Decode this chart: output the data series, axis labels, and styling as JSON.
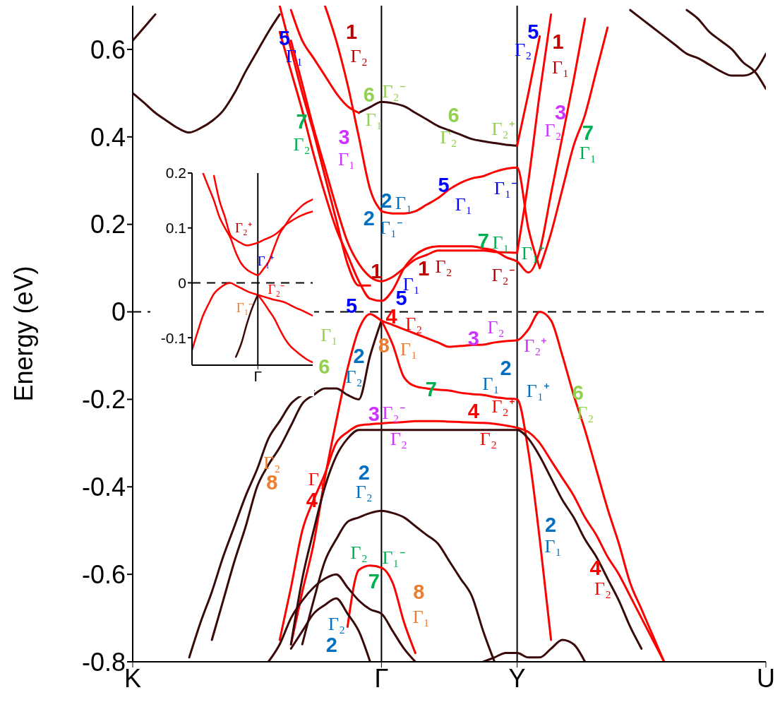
{
  "chart_data": [
    {
      "type": "line",
      "ylabel": "Energy (eV)",
      "ylim": [
        -0.8,
        0.7
      ],
      "categories": [
        "K",
        null,
        null,
        null,
        null,
        null,
        null,
        null,
        null,
        null,
        null,
        null,
        null,
        null,
        null,
        null,
        null,
        null,
        null,
        null,
        null,
        null,
        "Γ",
        null,
        null,
        null,
        null,
        null,
        null,
        null,
        null,
        null,
        null,
        null,
        "Y",
        null,
        null,
        null,
        null,
        null,
        null,
        null,
        null,
        null,
        null,
        null,
        null,
        null,
        null,
        null,
        null,
        null,
        null,
        null,
        null,
        null,
        "U"
      ],
      "yticks": [
        -0.8,
        -0.6,
        -0.4,
        -0.2,
        0,
        0.2,
        0.4,
        0.6
      ],
      "ref_lines": [
        {
          "axis": "x",
          "value": "Γ",
          "color": "#000000",
          "line_style": "solid"
        },
        {
          "axis": "x",
          "value": "Y",
          "color": "#000000",
          "line_style": "solid"
        },
        {
          "axis": "y",
          "value": 0,
          "color": "#000000",
          "line_style": "dashed"
        }
      ],
      "series": [
        {
          "color": "#3a0a0a",
          "values": [
            0.62,
            0.65,
            0.68,
            null,
            null,
            null,
            null,
            null,
            null,
            null,
            null,
            null,
            null,
            null,
            null,
            null,
            null,
            null,
            null,
            null,
            null,
            null,
            null,
            null,
            null,
            null,
            null,
            null,
            null,
            null,
            null,
            null,
            null,
            null,
            null,
            null,
            null,
            null,
            null,
            null,
            null,
            null,
            null,
            null,
            null,
            null,
            null,
            null,
            null,
            null,
            null,
            null,
            null,
            null,
            null,
            null,
            null
          ]
        },
        {
          "color": "#3a0a0a",
          "values": [
            0.5,
            0.478,
            0.455,
            0.437,
            0.42,
            0.41,
            0.42,
            0.436,
            0.46,
            0.5,
            0.55,
            0.595,
            0.64,
            0.68,
            null,
            null,
            null,
            null,
            null,
            null,
            null,
            null,
            null,
            null,
            null,
            null,
            null,
            null,
            null,
            null,
            null,
            null,
            null,
            null,
            null,
            null,
            null,
            null,
            null,
            null,
            null,
            null,
            null,
            null,
            null,
            null,
            null,
            null,
            null,
            null,
            null,
            null,
            null,
            null,
            null,
            null,
            null
          ]
        },
        {
          "color": "#3a0a0a",
          "values": [
            null,
            null,
            null,
            null,
            null,
            null,
            null,
            null,
            null,
            null,
            null,
            null,
            null,
            null,
            null,
            null,
            null,
            null,
            null,
            null,
            null,
            null,
            null,
            null,
            null,
            null,
            null,
            null,
            null,
            null,
            null,
            null,
            null,
            null,
            null,
            null,
            null,
            null,
            null,
            null,
            null,
            null,
            null,
            null,
            0.69,
            0.67,
            0.65,
            0.63,
            0.61,
            0.59,
            0.58,
            0.565,
            0.55,
            0.54,
            0.54,
            0.55,
            0.59
          ]
        },
        {
          "color": "#3a0a0a",
          "values": [
            null,
            null,
            null,
            null,
            null,
            null,
            null,
            null,
            null,
            null,
            null,
            null,
            null,
            null,
            null,
            null,
            null,
            null,
            null,
            null,
            null,
            null,
            null,
            null,
            null,
            null,
            null,
            null,
            null,
            null,
            null,
            null,
            null,
            null,
            null,
            null,
            null,
            null,
            null,
            null,
            null,
            null,
            null,
            null,
            null,
            null,
            null,
            null,
            null,
            0.69,
            0.67,
            0.64,
            0.62,
            0.6,
            0.57,
            0.55,
            0.51
          ]
        },
        {
          "color": "#3a0a0a",
          "values": [
            null,
            null,
            null,
            null,
            null,
            null,
            null,
            null,
            null,
            null,
            null,
            null,
            null,
            null,
            null,
            null,
            null,
            null,
            null,
            null,
            0.455,
            0.468,
            0.48,
            0.477,
            0.47,
            0.455,
            0.44,
            0.425,
            0.415,
            0.405,
            0.395,
            0.39,
            0.386,
            0.382,
            0.38,
            null,
            null,
            null,
            null,
            null,
            null,
            null,
            null,
            null,
            null,
            null,
            null,
            null,
            null,
            null,
            null,
            null,
            null,
            null,
            null,
            null,
            null
          ]
        },
        {
          "color": "#ff0000",
          "values": [
            null,
            null,
            null,
            null,
            null,
            null,
            null,
            null,
            null,
            null,
            null,
            null,
            null,
            null,
            0.69,
            0.62,
            0.58,
            0.54,
            0.5,
            0.47,
            0.455,
            null,
            null,
            null,
            null,
            null,
            null,
            null,
            null,
            null,
            null,
            null,
            null,
            null,
            null,
            null,
            null,
            null,
            null,
            null,
            null,
            null,
            null,
            null,
            null,
            null,
            null,
            null,
            null,
            null,
            null,
            null,
            null,
            null,
            null,
            null,
            null
          ]
        },
        {
          "color": "#ff0000",
          "values": [
            null,
            null,
            null,
            null,
            null,
            null,
            null,
            null,
            null,
            null,
            null,
            null,
            null,
            null,
            null,
            null,
            null,
            0.7,
            0.62,
            0.52,
            0.4,
            0.28,
            0.23,
            null,
            null,
            null,
            null,
            null,
            null,
            null,
            null,
            null,
            null,
            null,
            null,
            null,
            null,
            null,
            null,
            null,
            null,
            null,
            null,
            null,
            null,
            null,
            null,
            null,
            null,
            null,
            null,
            null,
            null,
            null,
            null,
            null,
            null
          ]
        },
        {
          "color": "#ff0000",
          "values": [
            null,
            null,
            null,
            null,
            null,
            null,
            null,
            null,
            null,
            null,
            null,
            null,
            null,
            null,
            null,
            null,
            null,
            null,
            null,
            null,
            null,
            null,
            0.23,
            0.225,
            0.225,
            0.23,
            0.245,
            0.26,
            0.28,
            0.295,
            0.305,
            0.31,
            0.32,
            0.327,
            0.33,
            0.19,
            0.1,
            null,
            null,
            null,
            null,
            null,
            null,
            null,
            null,
            null,
            null,
            null,
            null,
            null,
            null,
            null,
            null,
            null,
            null,
            null,
            null
          ]
        },
        {
          "color": "#ff0000",
          "values": [
            null,
            null,
            null,
            null,
            null,
            null,
            null,
            null,
            null,
            null,
            null,
            null,
            null,
            null,
            0.62,
            0.52,
            0.42,
            0.33,
            0.24,
            0.16,
            0.11,
            0.08,
            0.07,
            0.08,
            0.1,
            0.12,
            0.13,
            0.14,
            0.14,
            0.14,
            0.14,
            0.14,
            0.137,
            0.136,
            0.135,
            null,
            null,
            null,
            null,
            null,
            null,
            null,
            null,
            null,
            null,
            null,
            null,
            null,
            null,
            null,
            null,
            null,
            null,
            null,
            null,
            null,
            null
          ]
        },
        {
          "color": "#ff0000",
          "values": [
            null,
            null,
            null,
            null,
            null,
            null,
            null,
            null,
            null,
            null,
            null,
            null,
            null,
            0.64,
            0.55,
            0.46,
            0.36,
            0.27,
            0.19,
            0.13,
            0.07,
            0.03,
            0.025,
            0.05,
            0.1,
            0.13,
            0.145,
            0.15,
            0.15,
            0.15,
            0.15,
            0.145,
            0.14,
            0.125,
            0.115,
            0.09,
            0.14,
            0.27,
            0.4,
            0.53,
            0.67,
            null,
            null,
            null,
            null,
            null,
            null,
            null,
            null,
            null,
            null,
            null,
            null,
            null,
            null,
            null,
            null
          ]
        },
        {
          "color": "#ff0000",
          "values": [
            null,
            null,
            null,
            null,
            null,
            null,
            null,
            null,
            null,
            null,
            null,
            null,
            null,
            0.7,
            0.6,
            0.5,
            0.41,
            0.31,
            0.21,
            0.11,
            0.06,
            0.06,
            null,
            null,
            null,
            null,
            null,
            null,
            null,
            null,
            null,
            null,
            null,
            null,
            null,
            null,
            null,
            null,
            null,
            null,
            null,
            null,
            null,
            null,
            null,
            null,
            null,
            null,
            null,
            null,
            null,
            null,
            null,
            null,
            null,
            null,
            null
          ]
        },
        {
          "color": "#ff0000",
          "values": [
            null,
            null,
            null,
            null,
            null,
            null,
            null,
            null,
            null,
            null,
            null,
            null,
            null,
            null,
            null,
            null,
            null,
            null,
            null,
            null,
            null,
            null,
            null,
            null,
            null,
            null,
            null,
            null,
            null,
            null,
            null,
            null,
            null,
            null,
            0.135,
            0.3,
            0.5,
            0.68,
            null,
            null,
            null,
            null,
            null,
            null,
            null,
            null,
            null,
            null,
            null,
            null,
            null,
            null,
            null,
            null,
            null,
            null,
            null
          ]
        },
        {
          "color": "#ff0000",
          "values": [
            null,
            null,
            null,
            null,
            null,
            null,
            null,
            null,
            null,
            null,
            null,
            null,
            null,
            null,
            null,
            null,
            null,
            null,
            null,
            null,
            null,
            null,
            null,
            null,
            null,
            null,
            null,
            null,
            null,
            null,
            null,
            null,
            null,
            null,
            null,
            null,
            0.1,
            0.18,
            0.28,
            0.38,
            0.45,
            0.55,
            0.65,
            null,
            null,
            null,
            null,
            null,
            null,
            null,
            null,
            null,
            null,
            null,
            null,
            null,
            null
          ]
        },
        {
          "color": "#ff0000",
          "values": [
            null,
            null,
            null,
            null,
            null,
            null,
            null,
            null,
            null,
            null,
            null,
            null,
            null,
            null,
            null,
            null,
            null,
            null,
            null,
            null,
            null,
            null,
            null,
            null,
            null,
            null,
            null,
            null,
            null,
            null,
            null,
            null,
            null,
            null,
            0.38,
            0.5,
            0.63,
            null,
            null,
            null,
            null,
            null,
            null,
            null,
            null,
            null,
            null,
            null,
            null,
            null,
            null,
            null,
            null,
            null,
            null,
            null,
            null
          ]
        },
        {
          "color": "#ff0000",
          "values": [
            null,
            null,
            null,
            null,
            null,
            null,
            null,
            null,
            null,
            null,
            null,
            null,
            null,
            null,
            -0.76,
            -0.64,
            -0.53,
            -0.38,
            -0.25,
            -0.13,
            -0.04,
            -0.005,
            -0.02,
            -0.03,
            -0.04,
            -0.05,
            -0.06,
            -0.07,
            -0.08,
            -0.078,
            -0.076,
            -0.075,
            -0.07,
            -0.067,
            -0.065,
            -0.04,
            0.0,
            -0.02,
            -0.1,
            -0.19,
            -0.27,
            -0.36,
            -0.45,
            -0.53,
            -0.62,
            -0.68,
            -0.74,
            -0.8,
            null,
            null,
            null,
            null,
            null,
            null,
            null,
            null,
            null
          ]
        },
        {
          "color": "#3a0a0a",
          "values": [
            null,
            null,
            null,
            null,
            null,
            null,
            null,
            -0.75,
            -0.66,
            -0.57,
            -0.49,
            -0.4,
            -0.35,
            -0.31,
            -0.26,
            -0.21,
            -0.19,
            -0.175,
            -0.175,
            -0.19,
            -0.2,
            -0.1,
            -0.02,
            null,
            null,
            null,
            null,
            null,
            null,
            null,
            null,
            null,
            null,
            null,
            null,
            null,
            null,
            null,
            null,
            null,
            null,
            null,
            null,
            null,
            null,
            null,
            null,
            null,
            null,
            null,
            null,
            null,
            null,
            null,
            null,
            null,
            null
          ]
        },
        {
          "color": "#ff0000",
          "values": [
            null,
            null,
            null,
            null,
            null,
            null,
            null,
            null,
            null,
            null,
            null,
            null,
            null,
            null,
            null,
            null,
            null,
            null,
            null,
            null,
            null,
            null,
            -0.02,
            -0.075,
            -0.15,
            -0.17,
            -0.175,
            -0.178,
            -0.18,
            -0.185,
            -0.188,
            -0.19,
            -0.195,
            -0.198,
            -0.2,
            -0.32,
            -0.52,
            -0.75,
            null,
            null,
            null,
            null,
            null,
            null,
            null,
            null,
            null,
            null,
            null,
            null,
            null,
            null,
            null,
            null,
            null,
            null,
            null
          ]
        },
        {
          "color": "#ff0000",
          "values": [
            null,
            null,
            null,
            null,
            null,
            null,
            null,
            null,
            null,
            null,
            null,
            null,
            null,
            -0.75,
            -0.63,
            -0.5,
            -0.43,
            -0.37,
            -0.3,
            -0.275,
            -0.26,
            -0.257,
            -0.255,
            -0.253,
            -0.252,
            -0.25,
            -0.25,
            -0.25,
            -0.251,
            -0.252,
            -0.253,
            -0.254,
            -0.256,
            -0.26,
            -0.265,
            -0.275,
            -0.3,
            -0.34,
            -0.38,
            -0.42,
            -0.47,
            -0.51,
            -0.56,
            -0.6,
            -0.65,
            -0.7,
            -0.75,
            -0.8,
            null,
            null,
            null,
            null,
            null,
            null,
            null,
            null,
            null
          ]
        },
        {
          "color": "#3a0a0a",
          "values": [
            null,
            null,
            null,
            null,
            null,
            null,
            null,
            null,
            null,
            null,
            null,
            null,
            null,
            null,
            -0.76,
            -0.61,
            -0.5,
            -0.4,
            -0.33,
            -0.29,
            -0.27,
            -0.27,
            -0.27,
            -0.27,
            -0.27,
            -0.27,
            -0.27,
            -0.27,
            -0.27,
            -0.27,
            -0.27,
            -0.27,
            -0.27,
            -0.27,
            -0.27,
            -0.29,
            -0.33,
            -0.38,
            -0.43,
            -0.47,
            -0.52,
            -0.56,
            -0.61,
            -0.66,
            -0.72,
            -0.77,
            null,
            null,
            null,
            null,
            null,
            null,
            null,
            null,
            null,
            null,
            null
          ]
        },
        {
          "color": "#3a0a0a",
          "values": [
            null,
            null,
            null,
            null,
            null,
            -0.79,
            -0.71,
            -0.64,
            -0.56,
            -0.49,
            -0.42,
            -0.36,
            -0.29,
            -0.25,
            -0.21,
            -0.19,
            -0.18,
            null,
            null,
            null,
            null,
            null,
            null,
            null,
            null,
            null,
            null,
            null,
            null,
            null,
            null,
            null,
            null,
            null,
            null,
            null,
            null,
            null,
            null,
            null,
            null,
            null,
            null,
            null,
            null,
            null,
            null,
            null,
            null,
            null,
            null,
            null,
            null,
            null,
            null,
            null,
            null
          ]
        },
        {
          "color": "#3a0a0a",
          "values": [
            null,
            null,
            null,
            null,
            null,
            null,
            null,
            null,
            null,
            null,
            null,
            null,
            null,
            null,
            null,
            -0.76,
            -0.66,
            -0.57,
            -0.52,
            -0.48,
            -0.47,
            -0.46,
            -0.455,
            -0.46,
            -0.47,
            -0.49,
            -0.51,
            -0.53,
            -0.57,
            -0.61,
            -0.65,
            -0.73,
            -0.8,
            null,
            null,
            null,
            null,
            null,
            null,
            null,
            null,
            null,
            null,
            null,
            null,
            null,
            null,
            null,
            null,
            null,
            null,
            null,
            null,
            null,
            null,
            null,
            null
          ]
        },
        {
          "color": "#ff0000",
          "values": [
            null,
            null,
            null,
            null,
            null,
            null,
            null,
            null,
            null,
            null,
            null,
            null,
            null,
            null,
            null,
            null,
            null,
            null,
            null,
            -0.72,
            -0.59,
            -0.58,
            -0.585,
            -0.62,
            -0.71,
            -0.78,
            null,
            null,
            null,
            null,
            null,
            null,
            null,
            null,
            null,
            null,
            null,
            null,
            null,
            null,
            null,
            null,
            null,
            null,
            null,
            null,
            null,
            null,
            null,
            null,
            null,
            null,
            null,
            null,
            null,
            null,
            null
          ]
        },
        {
          "color": "#3a0a0a",
          "values": [
            null,
            null,
            null,
            null,
            null,
            null,
            null,
            null,
            null,
            null,
            null,
            null,
            -0.8,
            -0.76,
            -0.7,
            -0.66,
            -0.63,
            -0.61,
            -0.6,
            -0.63,
            -0.66,
            -0.68,
            -0.69,
            -0.73,
            -0.77,
            -0.8,
            null,
            null,
            null,
            null,
            null,
            null,
            null,
            null,
            null,
            null,
            null,
            null,
            null,
            null,
            null,
            null,
            null,
            null,
            null,
            null,
            null,
            null,
            null,
            null,
            null,
            null,
            null,
            null,
            null,
            null,
            null
          ]
        },
        {
          "color": "#3a0a0a",
          "values": [
            null,
            null,
            null,
            null,
            null,
            null,
            null,
            null,
            null,
            null,
            null,
            null,
            null,
            null,
            -0.77,
            -0.73,
            -0.69,
            -0.67,
            -0.655,
            -0.69,
            -0.73,
            -0.8,
            null,
            null,
            null,
            null,
            null,
            null,
            null,
            null,
            null,
            null,
            null,
            null,
            null,
            null,
            null,
            null,
            null,
            null,
            null,
            null,
            null,
            null,
            null,
            null,
            null,
            null,
            null,
            null,
            null,
            null,
            null,
            null,
            null,
            null,
            null
          ]
        },
        {
          "color": "#3a0a0a",
          "values": [
            null,
            null,
            null,
            null,
            null,
            null,
            null,
            null,
            null,
            null,
            null,
            null,
            null,
            null,
            null,
            null,
            null,
            null,
            null,
            null,
            null,
            null,
            null,
            null,
            null,
            null,
            null,
            null,
            null,
            null,
            null,
            -0.8,
            -0.79,
            -0.78,
            -0.78,
            -0.79,
            -0.79,
            -0.77,
            -0.75,
            -0.76,
            -0.8,
            null,
            null,
            null,
            null,
            null,
            null,
            null,
            null,
            null,
            null,
            null,
            null,
            null,
            null,
            null,
            null
          ]
        }
      ],
      "annotations": [
        "5",
        "Γ₁",
        "1",
        "Γ₂",
        "Γ₂⁻",
        "6",
        "Γ₁",
        "7",
        "Γ₂",
        "3",
        "Γ₁",
        "6",
        "Γ₂",
        "Γ₂⁺",
        "2",
        "Γ₁",
        "2",
        "Γ₁⁻",
        "5",
        "Γ₁",
        "Γ₁⁻",
        "5",
        "Γ₂",
        "1",
        "Γ₁",
        "3",
        "Γ₂",
        "7",
        "Γ₁",
        "7",
        "Γ₁",
        "Γ₁⁺",
        "Γ₂⁻",
        "1",
        "1",
        "Γ₂",
        "Γ₁",
        "5",
        "5",
        "4",
        "Γ₂",
        "Γ₁",
        "6",
        "8",
        "Γ₁",
        "2",
        "Γ₂",
        "3",
        "Γ₂",
        "Γ₂⁺",
        "7",
        "2",
        "Γ₁",
        "Γ₁⁺",
        "6",
        "Γ₂",
        "3",
        "Γ₂⁻",
        "Γ₂",
        "4",
        "Γ₂⁺",
        "Γ₂",
        "Γ₂",
        "8",
        "Γ₁",
        "4",
        "2",
        "Γ₂",
        "Γ₂",
        "Γ₁⁻",
        "7",
        "8",
        "Γ₁",
        "Γ₂",
        "2",
        "2",
        "Γ₁",
        "4",
        "Γ₂"
      ]
    },
    {
      "type": "line",
      "ylim": [
        -0.15,
        0.2
      ],
      "categories": [
        null,
        null,
        null,
        null,
        null,
        null,
        null,
        null,
        null,
        null,
        null,
        null,
        "Γ",
        null,
        null,
        null,
        null,
        null,
        null,
        null,
        null,
        null,
        null
      ],
      "yticks": [
        -0.1,
        0,
        0.1,
        0.2
      ],
      "ref_lines": [
        {
          "axis": "x",
          "value": "Γ",
          "color": "#000000",
          "line_style": "solid"
        },
        {
          "axis": "y",
          "value": 0,
          "color": "#000000",
          "line_style": "dashed"
        }
      ],
      "series": [
        {
          "color": "#ff0000",
          "values": [
            null,
            null,
            null,
            null,
            0.195,
            0.15,
            0.12,
            0.087,
            0.078,
            0.072,
            0.068,
            0.07,
            0.073,
            0.078,
            0.082,
            0.087,
            0.095,
            0.105,
            0.112,
            0.118,
            0.123,
            0.127,
            0.13
          ]
        },
        {
          "color": "#ff0000",
          "values": [
            null,
            null,
            0.2,
            0.175,
            0.15,
            0.12,
            0.1,
            0.082,
            0.055,
            0.035,
            0.024,
            0.018,
            0.014,
            0.025,
            0.039,
            0.065,
            0.09,
            0.105,
            0.12,
            0.13,
            0.14,
            0.147,
            0.152
          ]
        },
        {
          "color": "#ff0000",
          "values": [
            -0.123,
            -0.09,
            -0.06,
            -0.039,
            -0.02,
            -0.01,
            -0.003,
            0,
            -0.005,
            -0.01,
            -0.015,
            -0.019,
            -0.022,
            -0.025,
            -0.028,
            -0.031,
            -0.033,
            -0.036,
            -0.041,
            -0.046,
            -0.05,
            -0.055,
            -0.06
          ]
        },
        {
          "color": "#ff0000",
          "values": [
            null,
            null,
            null,
            null,
            null,
            null,
            null,
            null,
            null,
            null,
            null,
            null,
            -0.022,
            -0.035,
            -0.05,
            -0.065,
            -0.085,
            -0.103,
            -0.116,
            -0.125,
            -0.133,
            -0.14,
            -0.145
          ]
        },
        {
          "color": "#3a0a0a",
          "values": [
            null,
            null,
            null,
            null,
            null,
            null,
            null,
            null,
            -0.135,
            -0.11,
            -0.075,
            -0.045,
            -0.022,
            null,
            null,
            null,
            null,
            null,
            null,
            null,
            null,
            null,
            null
          ]
        }
      ],
      "annotations": [
        "Γ₂⁺",
        "Γ₁⁺",
        "Γ₂⁻",
        "Γ₁⁻"
      ]
    }
  ]
}
